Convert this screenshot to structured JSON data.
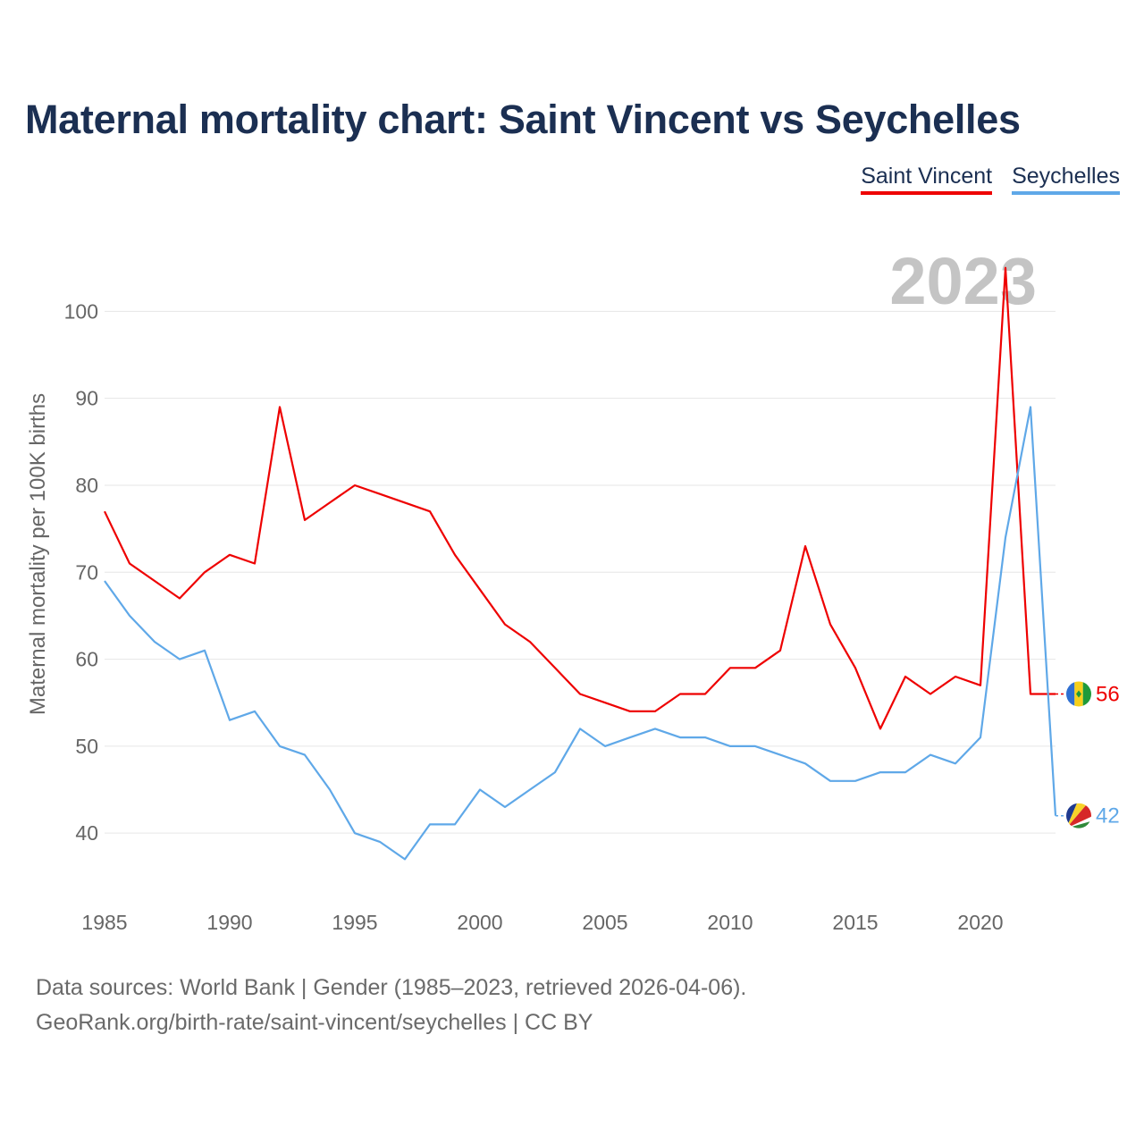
{
  "title": "Maternal mortality chart: Saint Vincent vs Seychelles",
  "legend": [
    {
      "name": "Saint Vincent",
      "color": "#ee0000"
    },
    {
      "name": "Seychelles",
      "color": "#5fa8e8"
    }
  ],
  "footer": {
    "line1": "Data sources: World Bank | Gender (1985–2023, retrieved 2026-04-06).",
    "line2": "GeoRank.org/birth-rate/saint-vincent/seychelles | CC BY"
  },
  "chart_data": {
    "type": "line",
    "year_label": "2023",
    "ylabel": "Maternal mortality per 100K births",
    "xlabel": "",
    "xlim": [
      1985,
      2023
    ],
    "ylim": [
      32,
      106
    ],
    "x_ticks": [
      1985,
      1990,
      1995,
      2000,
      2005,
      2010,
      2015,
      2020
    ],
    "y_ticks": [
      40,
      50,
      60,
      70,
      80,
      90,
      100
    ],
    "x": [
      1985,
      1986,
      1987,
      1988,
      1989,
      1990,
      1991,
      1992,
      1993,
      1994,
      1995,
      1996,
      1997,
      1998,
      1999,
      2000,
      2001,
      2002,
      2003,
      2004,
      2005,
      2006,
      2007,
      2008,
      2009,
      2010,
      2011,
      2012,
      2013,
      2014,
      2015,
      2016,
      2017,
      2018,
      2019,
      2020,
      2021,
      2022,
      2023
    ],
    "series": [
      {
        "name": "Saint Vincent",
        "color": "#ee0000",
        "end_label": "56",
        "values": [
          77,
          71,
          69,
          67,
          70,
          72,
          71,
          89,
          76,
          78,
          80,
          79,
          78,
          77,
          72,
          68,
          64,
          62,
          59,
          56,
          55,
          54,
          54,
          56,
          56,
          59,
          59,
          61,
          73,
          64,
          59,
          52,
          58,
          56,
          58,
          57,
          105,
          56,
          56
        ]
      },
      {
        "name": "Seychelles",
        "color": "#5fa8e8",
        "end_label": "42",
        "values": [
          69,
          65,
          62,
          60,
          61,
          53,
          54,
          50,
          49,
          45,
          40,
          39,
          37,
          41,
          41,
          45,
          43,
          45,
          47,
          52,
          50,
          51,
          52,
          51,
          51,
          50,
          50,
          49,
          48,
          46,
          46,
          47,
          47,
          49,
          48,
          51,
          74,
          89,
          42
        ]
      }
    ]
  }
}
